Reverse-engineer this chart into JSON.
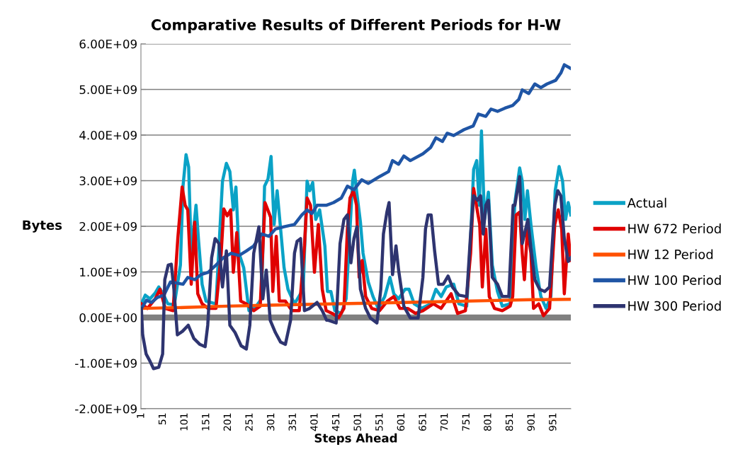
{
  "chart_data": {
    "type": "line",
    "title": "Comparative Results of Different Periods for H-W",
    "xlabel": "Steps Ahead",
    "ylabel": "Bytes",
    "xlim": [
      0,
      991
    ],
    "xticks": [
      1,
      51,
      101,
      151,
      201,
      251,
      301,
      351,
      401,
      451,
      501,
      551,
      601,
      651,
      701,
      751,
      801,
      851,
      901,
      951
    ],
    "ylim": [
      -2000000000.0,
      6000000000.0
    ],
    "yticks": [
      {
        "value": -2000000000.0,
        "label": "-2.00E+09"
      },
      {
        "value": -1000000000.0,
        "label": "-1.00E+09"
      },
      {
        "value": 0,
        "label": "0.00E+00"
      },
      {
        "value": 1000000000.0,
        "label": "1.00E+09"
      },
      {
        "value": 2000000000.0,
        "label": "2.00E+09"
      },
      {
        "value": 3000000000.0,
        "label": "3.00E+09"
      },
      {
        "value": 4000000000.0,
        "label": "4.00E+09"
      },
      {
        "value": 5000000000.0,
        "label": "5.00E+09"
      },
      {
        "value": 6000000000.0,
        "label": "6.00E+09"
      }
    ],
    "grid": "y",
    "legend": "right",
    "marker": "none",
    "line_style": "solid",
    "series": [
      {
        "name": "Actual",
        "color": "#0aa2c6",
        "x": [
          1,
          10,
          21,
          33,
          41,
          50,
          62,
          77,
          91,
          97,
          104,
          110,
          116,
          127,
          133,
          141,
          150,
          173,
          188,
          197,
          205,
          213,
          219,
          226,
          237,
          249,
          266,
          278,
          285,
          293,
          300,
          307,
          314,
          322,
          330,
          339,
          354,
          374,
          383,
          389,
          396,
          403,
          412,
          424,
          430,
          438,
          447,
          462,
          473,
          482,
          488,
          492,
          497,
          506,
          512,
          524,
          535,
          547,
          562,
          574,
          583,
          594,
          609,
          618,
          630,
          647,
          668,
          680,
          692,
          704,
          721,
          733,
          751,
          760,
          767,
          774,
          780,
          785,
          792,
          801,
          810,
          822,
          833,
          851,
          862,
          873,
          879,
          885,
          891,
          899,
          911,
          922,
          934,
          945,
          955,
          964,
          972,
          979,
          985,
          991
        ],
        "values": [
          300000000.0,
          490000000.0,
          410000000.0,
          540000000.0,
          670000000.0,
          540000000.0,
          300000000.0,
          280000000.0,
          1150000000.0,
          2880000000.0,
          3570000000.0,
          3300000000.0,
          1410000000.0,
          2460000000.0,
          1670000000.0,
          730000000.0,
          360000000.0,
          300000000.0,
          2990000000.0,
          3380000000.0,
          3200000000.0,
          2360000000.0,
          2860000000.0,
          1410000000.0,
          1090000000.0,
          150000000.0,
          250000000.0,
          410000000.0,
          2880000000.0,
          3040000000.0,
          3530000000.0,
          2040000000.0,
          2780000000.0,
          1940000000.0,
          1090000000.0,
          620000000.0,
          300000000.0,
          620000000.0,
          2990000000.0,
          2780000000.0,
          2960000000.0,
          2150000000.0,
          2360000000.0,
          1570000000.0,
          570000000.0,
          570000000.0,
          150000000.0,
          90000000.0,
          410000000.0,
          1940000000.0,
          2990000000.0,
          3230000000.0,
          2780000000.0,
          2090000000.0,
          1410000000.0,
          780000000.0,
          460000000.0,
          200000000.0,
          460000000.0,
          880000000.0,
          520000000.0,
          410000000.0,
          620000000.0,
          620000000.0,
          300000000.0,
          200000000.0,
          300000000.0,
          620000000.0,
          460000000.0,
          670000000.0,
          730000000.0,
          300000000.0,
          250000000.0,
          1730000000.0,
          3250000000.0,
          3440000000.0,
          2460000000.0,
          4090000000.0,
          2150000000.0,
          2750000000.0,
          1150000000.0,
          570000000.0,
          250000000.0,
          300000000.0,
          2520000000.0,
          3280000000.0,
          2990000000.0,
          2150000000.0,
          2780000000.0,
          2040000000.0,
          1090000000.0,
          460000000.0,
          200000000.0,
          460000000.0,
          2780000000.0,
          3310000000.0,
          2990000000.0,
          2150000000.0,
          2520000000.0,
          2250000000.0
        ]
      },
      {
        "name": "HW 672 Period",
        "color": "#e00000",
        "x": [
          1,
          15,
          33,
          44,
          56,
          74,
          85,
          95,
          102,
          108,
          116,
          124,
          131,
          141,
          155,
          173,
          185,
          191,
          199,
          207,
          213,
          221,
          230,
          243,
          260,
          275,
          286,
          299,
          304,
          312,
          319,
          333,
          348,
          365,
          377,
          383,
          391,
          400,
          409,
          418,
          427,
          441,
          456,
          468,
          476,
          482,
          490,
          497,
          503,
          510,
          518,
          532,
          550,
          568,
          583,
          597,
          615,
          633,
          650,
          674,
          692,
          715,
          730,
          748,
          760,
          767,
          776,
          781,
          787,
          795,
          803,
          815,
          833,
          851,
          857,
          865,
          873,
          879,
          884,
          891,
          899,
          905,
          917,
          928,
          942,
          954,
          962,
          970,
          976,
          985,
          991
        ],
        "values": [
          300000000.0,
          200000000.0,
          410000000.0,
          620000000.0,
          200000000.0,
          150000000.0,
          1730000000.0,
          2860000000.0,
          2460000000.0,
          2360000000.0,
          730000000.0,
          2090000000.0,
          520000000.0,
          300000000.0,
          200000000.0,
          200000000.0,
          1410000000.0,
          2380000000.0,
          2230000000.0,
          2360000000.0,
          990000000.0,
          1860000000.0,
          360000000.0,
          300000000.0,
          150000000.0,
          250000000.0,
          2520000000.0,
          2200000000.0,
          570000000.0,
          1780000000.0,
          360000000.0,
          360000000.0,
          150000000.0,
          150000000.0,
          1570000000.0,
          2620000000.0,
          2460000000.0,
          990000000.0,
          2040000000.0,
          620000000.0,
          150000000.0,
          90000000.0,
          0,
          200000000.0,
          1940000000.0,
          2620000000.0,
          2780000000.0,
          2460000000.0,
          880000000.0,
          1250000000.0,
          460000000.0,
          200000000.0,
          150000000.0,
          360000000.0,
          460000000.0,
          200000000.0,
          200000000.0,
          90000000.0,
          150000000.0,
          300000000.0,
          200000000.0,
          520000000.0,
          90000000.0,
          150000000.0,
          1410000000.0,
          2830000000.0,
          2310000000.0,
          2040000000.0,
          670000000.0,
          1940000000.0,
          460000000.0,
          200000000.0,
          150000000.0,
          250000000.0,
          460000000.0,
          2250000000.0,
          2310000000.0,
          1410000000.0,
          830000000.0,
          1940000000.0,
          1410000000.0,
          200000000.0,
          300000000.0,
          40000000.0,
          200000000.0,
          2040000000.0,
          2360000000.0,
          1940000000.0,
          520000000.0,
          1830000000.0,
          1250000000.0
        ]
      },
      {
        "name": "HW 12 Period",
        "color": "#ff5000",
        "x": [
          1,
          100,
          200,
          300,
          400,
          500,
          600,
          700,
          800,
          900,
          991
        ],
        "values": [
          200000000.0,
          220000000.0,
          250000000.0,
          270000000.0,
          290000000.0,
          310000000.0,
          330000000.0,
          350000000.0,
          370000000.0,
          390000000.0,
          400000000.0
        ]
      },
      {
        "name": "HW 100 Period",
        "color": "#1f55a5",
        "x": [
          1,
          13,
          24,
          38,
          53,
          68,
          85,
          97,
          108,
          124,
          138,
          155,
          173,
          190,
          208,
          226,
          243,
          260,
          278,
          295,
          310,
          330,
          354,
          371,
          383,
          394,
          406,
          427,
          444,
          462,
          476,
          491,
          509,
          524,
          550,
          571,
          580,
          594,
          606,
          621,
          650,
          668,
          680,
          695,
          706,
          721,
          745,
          766,
          778,
          795,
          807,
          822,
          839,
          857,
          871,
          879,
          894,
          908,
          922,
          936,
          956,
          968,
          976,
          991
        ],
        "values": [
          200000000.0,
          380000000.0,
          330000000.0,
          440000000.0,
          490000000.0,
          780000000.0,
          750000000.0,
          730000000.0,
          880000000.0,
          830000000.0,
          940000000.0,
          990000000.0,
          1150000000.0,
          1310000000.0,
          1410000000.0,
          1360000000.0,
          1460000000.0,
          1570000000.0,
          1830000000.0,
          1780000000.0,
          1940000000.0,
          1990000000.0,
          2040000000.0,
          2250000000.0,
          2360000000.0,
          2280000000.0,
          2460000000.0,
          2460000000.0,
          2520000000.0,
          2620000000.0,
          2880000000.0,
          2800000000.0,
          3020000000.0,
          2940000000.0,
          3090000000.0,
          3200000000.0,
          3440000000.0,
          3360000000.0,
          3540000000.0,
          3440000000.0,
          3590000000.0,
          3730000000.0,
          3940000000.0,
          3860000000.0,
          4040000000.0,
          3990000000.0,
          4120000000.0,
          4200000000.0,
          4460000000.0,
          4410000000.0,
          4570000000.0,
          4520000000.0,
          4590000000.0,
          4650000000.0,
          4780000000.0,
          4990000000.0,
          4910000000.0,
          5120000000.0,
          5040000000.0,
          5120000000.0,
          5200000000.0,
          5360000000.0,
          5540000000.0,
          5460000000.0
        ]
      },
      {
        "name": "HW 300 Period",
        "color": "#2e3470",
        "x": [
          1,
          4,
          12,
          21,
          29,
          41,
          50,
          55,
          63,
          70,
          76,
          84,
          96,
          109,
          122,
          136,
          148,
          154,
          163,
          171,
          180,
          188,
          197,
          205,
          217,
          231,
          243,
          251,
          260,
          272,
          281,
          289,
          298,
          310,
          322,
          333,
          345,
          354,
          360,
          368,
          377,
          389,
          406,
          418,
          428,
          432,
          450,
          459,
          468,
          476,
          484,
          491,
          498,
          506,
          518,
          529,
          544,
          553,
          559,
          567,
          572,
          580,
          588,
          594,
          606,
          621,
          639,
          650,
          656,
          662,
          669,
          677,
          686,
          697,
          708,
          718,
          733,
          751,
          760,
          767,
          776,
          783,
          789,
          795,
          801,
          810,
          822,
          833,
          848,
          858,
          862,
          873,
          879,
          892,
          899,
          908,
          919,
          931,
          942,
          954,
          961,
          968,
          976,
          985,
          991
        ],
        "values": [
          200000000.0,
          -380000000.0,
          -800000000.0,
          -960000000.0,
          -1120000000.0,
          -1090000000.0,
          -800000000.0,
          830000000.0,
          1150000000.0,
          1170000000.0,
          620000000.0,
          -380000000.0,
          -300000000.0,
          -170000000.0,
          -460000000.0,
          -590000000.0,
          -640000000.0,
          -170000000.0,
          1310000000.0,
          1730000000.0,
          1620000000.0,
          670000000.0,
          1460000000.0,
          -170000000.0,
          -330000000.0,
          -620000000.0,
          -690000000.0,
          -170000000.0,
          1410000000.0,
          1990000000.0,
          410000000.0,
          1040000000.0,
          -60000000.0,
          -330000000.0,
          -540000000.0,
          -590000000.0,
          -60000000.0,
          1410000000.0,
          1670000000.0,
          1730000000.0,
          150000000.0,
          200000000.0,
          330000000.0,
          150000000.0,
          -60000000.0,
          -60000000.0,
          -120000000.0,
          1620000000.0,
          2150000000.0,
          2250000000.0,
          1200000000.0,
          1730000000.0,
          1990000000.0,
          620000000.0,
          200000000.0,
          -10000000.0,
          -120000000.0,
          620000000.0,
          1830000000.0,
          2310000000.0,
          2520000000.0,
          940000000.0,
          1570000000.0,
          1040000000.0,
          250000000.0,
          -10000000.0,
          -10000000.0,
          880000000.0,
          1940000000.0,
          2250000000.0,
          2250000000.0,
          1460000000.0,
          730000000.0,
          730000000.0,
          910000000.0,
          670000000.0,
          490000000.0,
          460000000.0,
          1830000000.0,
          2670000000.0,
          2570000000.0,
          2670000000.0,
          1830000000.0,
          2460000000.0,
          2570000000.0,
          880000000.0,
          730000000.0,
          460000000.0,
          460000000.0,
          2460000000.0,
          2460000000.0,
          3090000000.0,
          1620000000.0,
          2150000000.0,
          1520000000.0,
          830000000.0,
          620000000.0,
          570000000.0,
          670000000.0,
          2460000000.0,
          2780000000.0,
          2670000000.0,
          1730000000.0,
          1230000000.0,
          1310000000.0
        ]
      }
    ]
  }
}
